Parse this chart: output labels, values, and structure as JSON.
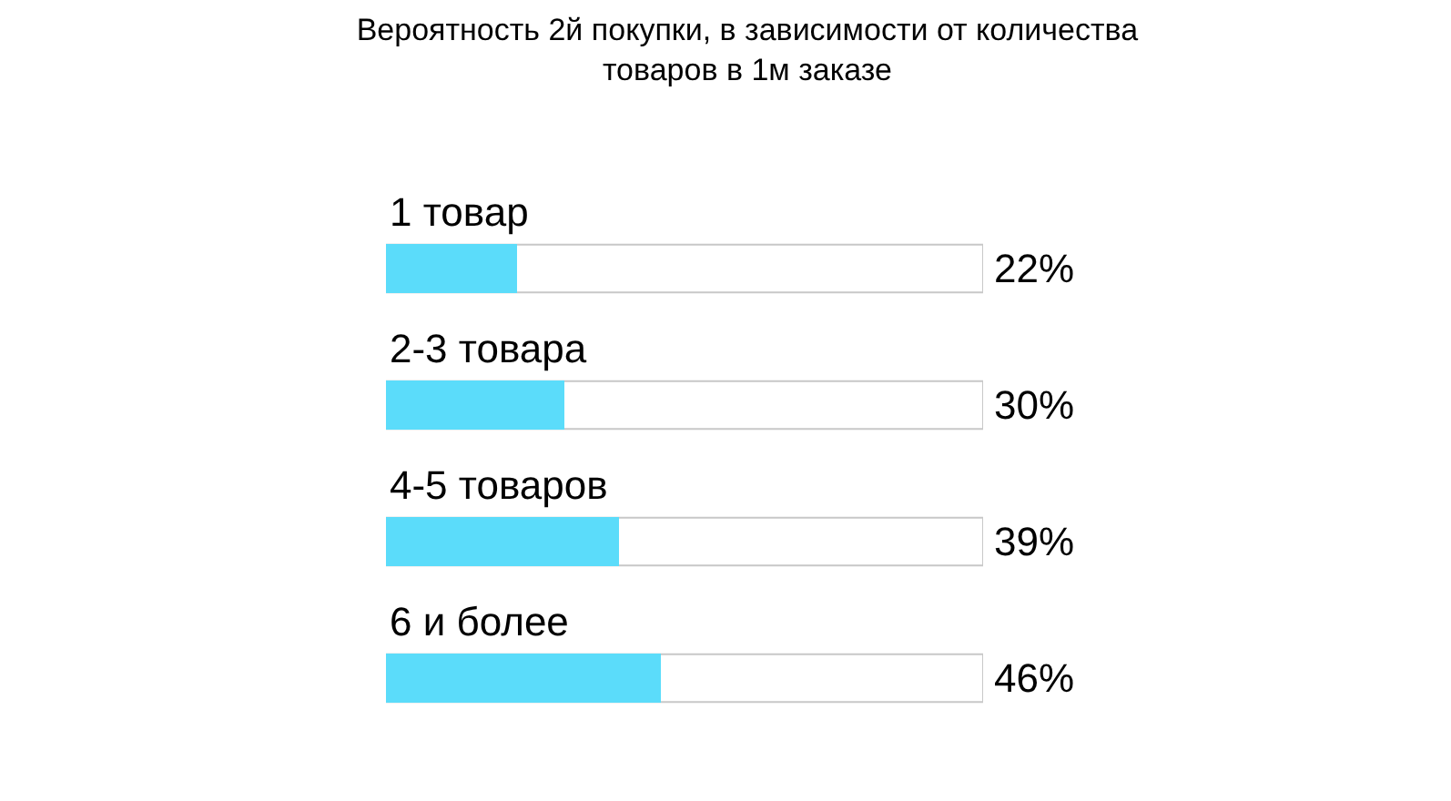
{
  "chart_data": {
    "type": "bar",
    "orientation": "horizontal",
    "title": "Вероятность 2й покупки, в зависимости от количества\nтоваров в 1м заказе",
    "categories": [
      "1 товар",
      "2-3 товара",
      "4-5 товаров",
      "6 и более"
    ],
    "values": [
      22,
      30,
      39,
      46
    ],
    "value_labels": [
      "22%",
      "30%",
      "39%",
      "46%"
    ],
    "color": "#5bdcfa",
    "xlim": [
      0,
      100
    ],
    "tick_labels": false,
    "grid": false,
    "legend": false
  }
}
